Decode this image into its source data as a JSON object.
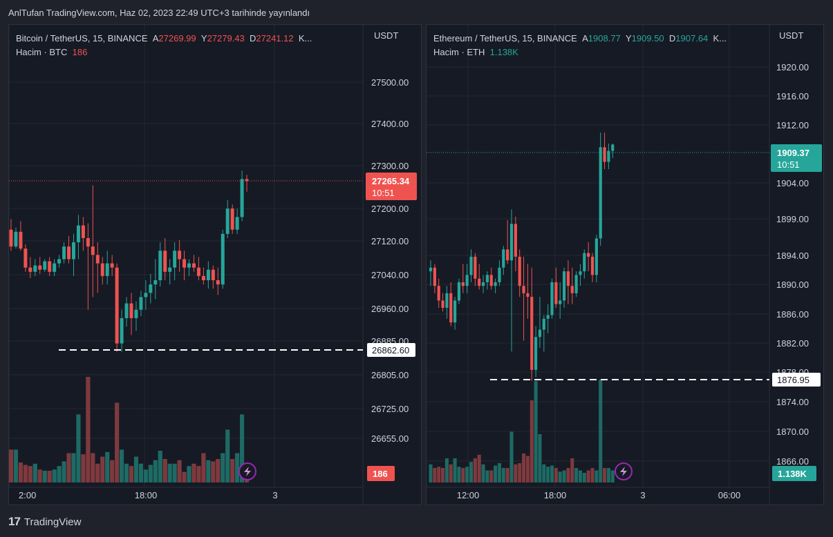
{
  "header": {
    "title": "AnlTufan TradingView.com, Haz 02, 2023 22:49 UTC+3 tarihinde yayınlandı"
  },
  "footer": {
    "logo_text": "TradingView",
    "logo_mark": "17"
  },
  "colors": {
    "up": "#26a69a",
    "down": "#ef5350",
    "up_vol": "#1e6a64",
    "down_vol": "#7f3a3e",
    "background": "#161a25",
    "grid": "#242833"
  },
  "chart_data": [
    {
      "type": "candlestick",
      "panel": "left",
      "symbol": {
        "pair": "Bitcoin / TetherUS, 15, BINANCE",
        "o_label": "A",
        "o": "27269.99",
        "h_label": "Y",
        "h": "27279.43",
        "l_label": "D",
        "l": "27241.12",
        "c_label": "K..."
      },
      "volume": {
        "label": "Hacim · BTC",
        "value": "186"
      },
      "currency": "USDT",
      "price_ticks": [
        "27500.00",
        "27400.00",
        "27300.00",
        "27200.00",
        "27120.00",
        "27040.00",
        "26960.00",
        "26885.00",
        "26805.00",
        "26725.00",
        "26655.00"
      ],
      "time_ticks": [
        "2:00",
        "18:00",
        "3"
      ],
      "last_price": {
        "value": "27265.34",
        "countdown": "10:51"
      },
      "support_line": {
        "value": "26862.60"
      },
      "volume_badge": "186",
      "ylim": [
        26560,
        27620
      ],
      "candles": [
        [
          27150,
          27175,
          27100,
          27110
        ],
        [
          27110,
          27155,
          27105,
          27145
        ],
        [
          27145,
          27170,
          27100,
          27105
        ],
        [
          27105,
          27115,
          27050,
          27060
        ],
        [
          27060,
          27085,
          27035,
          27050
        ],
        [
          27050,
          27080,
          27040,
          27065
        ],
        [
          27065,
          27085,
          27045,
          27055
        ],
        [
          27055,
          27080,
          27050,
          27075
        ],
        [
          27075,
          27085,
          27040,
          27050
        ],
        [
          27050,
          27080,
          27040,
          27070
        ],
        [
          27070,
          27090,
          27060,
          27080
        ],
        [
          27080,
          27120,
          27070,
          27110
        ],
        [
          27110,
          27135,
          27070,
          27080
        ],
        [
          27080,
          27140,
          27040,
          27120
        ],
        [
          27120,
          27185,
          27080,
          27160
        ],
        [
          27160,
          27180,
          27100,
          27130
        ],
        [
          27130,
          27165,
          26960,
          27110
        ],
        [
          27110,
          27255,
          26990,
          27090
        ],
        [
          27090,
          27120,
          27000,
          27070
        ],
        [
          27070,
          27085,
          27020,
          27040
        ],
        [
          27040,
          27100,
          27020,
          27070
        ],
        [
          27070,
          27090,
          27040,
          27060
        ],
        [
          27060,
          27070,
          26860,
          26880
        ],
        [
          26880,
          26960,
          26860,
          26940
        ],
        [
          26940,
          26990,
          26920,
          26975
        ],
        [
          26975,
          27000,
          26900,
          26940
        ],
        [
          26940,
          26980,
          26910,
          26960
        ],
        [
          26960,
          27005,
          26945,
          26990
        ],
        [
          26990,
          27030,
          26960,
          27000
        ],
        [
          27000,
          27045,
          26975,
          27020
        ],
        [
          27020,
          27080,
          26985,
          27030
        ],
        [
          27030,
          27120,
          27015,
          27100
        ],
        [
          27100,
          27130,
          27030,
          27050
        ],
        [
          27050,
          27080,
          27020,
          27060
        ],
        [
          27060,
          27120,
          27030,
          27100
        ],
        [
          27100,
          27125,
          27050,
          27080
        ],
        [
          27080,
          27100,
          27030,
          27060
        ],
        [
          27060,
          27080,
          27040,
          27070
        ],
        [
          27070,
          27090,
          27050,
          27060
        ],
        [
          27060,
          27085,
          27030,
          27040
        ],
        [
          27040,
          27060,
          27020,
          27030
        ],
        [
          27030,
          27075,
          27010,
          27055
        ],
        [
          27055,
          27065,
          27010,
          27030
        ],
        [
          27030,
          27060,
          26995,
          27020
        ],
        [
          27020,
          27150,
          27010,
          27140
        ],
        [
          27140,
          27220,
          27130,
          27200
        ],
        [
          27200,
          27210,
          27140,
          27150
        ],
        [
          27150,
          27200,
          27140,
          27180
        ],
        [
          27180,
          27290,
          27170,
          27270
        ],
        [
          27270,
          27280,
          27240,
          27265
        ]
      ],
      "volumes": [
        0.28,
        0.28,
        0.17,
        0.15,
        0.14,
        0.16,
        0.11,
        0.1,
        0.1,
        0.11,
        0.14,
        0.18,
        0.25,
        0.25,
        0.58,
        0.24,
        0.9,
        0.25,
        0.16,
        0.22,
        0.26,
        0.19,
        0.68,
        0.28,
        0.16,
        0.14,
        0.22,
        0.16,
        0.11,
        0.15,
        0.19,
        0.27,
        0.2,
        0.16,
        0.16,
        0.19,
        0.09,
        0.14,
        0.16,
        0.14,
        0.25,
        0.19,
        0.18,
        0.2,
        0.25,
        0.45,
        0.2,
        0.25,
        0.58,
        0.16
      ],
      "watermark_icon": "lightning-icon"
    },
    {
      "type": "candlestick",
      "panel": "right",
      "symbol": {
        "pair": "Ethereum / TetherUS, 15, BINANCE",
        "o_label": "A",
        "o": "1908.77",
        "h_label": "Y",
        "h": "1909.50",
        "l_label": "D",
        "l": "1907.64",
        "c_label": "K..."
      },
      "volume": {
        "label": "Hacim · ETH",
        "value": "1.138K"
      },
      "currency": "USDT",
      "price_ticks": [
        "1920.00",
        "1916.00",
        "1912.00",
        "1904.00",
        "1899.00",
        "1894.00",
        "1890.00",
        "1886.00",
        "1882.00",
        "1878.00",
        "1874.00",
        "1870.00",
        "1866.00"
      ],
      "time_ticks": [
        "12:00",
        "18:00",
        "3",
        "06:00"
      ],
      "last_price": {
        "value": "1909.37",
        "countdown": "10:51"
      },
      "support_line": {
        "value": "1876.95"
      },
      "volume_badge": "1.138K",
      "ylim": [
        1862.5,
        1925.5
      ],
      "candles": [
        [
          1892.0,
          1893.5,
          1890.0,
          1892.5
        ],
        [
          1892.5,
          1893.0,
          1889.0,
          1890.0
        ],
        [
          1890.0,
          1891.0,
          1887.0,
          1888.0
        ],
        [
          1888.0,
          1889.0,
          1886.5,
          1887.0
        ],
        [
          1887.0,
          1890.0,
          1885.5,
          1889.0
        ],
        [
          1889.0,
          1890.5,
          1884.5,
          1885.0
        ],
        [
          1885.0,
          1888.5,
          1884.0,
          1888.0
        ],
        [
          1888.0,
          1891.0,
          1887.5,
          1890.5
        ],
        [
          1890.5,
          1893.0,
          1889.0,
          1890.0
        ],
        [
          1890.0,
          1893.0,
          1889.0,
          1891.5
        ],
        [
          1891.5,
          1895.0,
          1890.5,
          1894.0
        ],
        [
          1894.0,
          1894.5,
          1890.0,
          1891.0
        ],
        [
          1891.0,
          1893.0,
          1889.5,
          1890.0
        ],
        [
          1890.0,
          1891.5,
          1889.0,
          1890.5
        ],
        [
          1890.5,
          1892.0,
          1889.5,
          1891.5
        ],
        [
          1891.5,
          1892.5,
          1889.5,
          1890.0
        ],
        [
          1890.0,
          1891.0,
          1889.0,
          1890.5
        ],
        [
          1890.5,
          1893.5,
          1890.0,
          1892.5
        ],
        [
          1892.5,
          1895.5,
          1891.5,
          1895.0
        ],
        [
          1895.0,
          1899.0,
          1893.0,
          1893.5
        ],
        [
          1893.5,
          1900.5,
          1881.0,
          1898.5
        ],
        [
          1898.5,
          1899.5,
          1892.0,
          1894.0
        ],
        [
          1894.0,
          1895.0,
          1888.5,
          1890.0
        ],
        [
          1890.0,
          1894.0,
          1882.5,
          1889.0
        ],
        [
          1889.0,
          1893.0,
          1885.5,
          1888.5
        ],
        [
          1888.5,
          1892.5,
          1877.0,
          1878.5
        ],
        [
          1878.5,
          1884.5,
          1877.5,
          1883.0
        ],
        [
          1883.0,
          1888.5,
          1881.5,
          1884.0
        ],
        [
          1884.0,
          1886.0,
          1881.0,
          1885.5
        ],
        [
          1885.5,
          1887.5,
          1883.5,
          1886.0
        ],
        [
          1886.0,
          1891.0,
          1885.5,
          1890.5
        ],
        [
          1890.5,
          1892.5,
          1887.0,
          1887.5
        ],
        [
          1887.5,
          1890.5,
          1885.5,
          1888.0
        ],
        [
          1888.0,
          1892.5,
          1887.0,
          1892.0
        ],
        [
          1892.0,
          1893.5,
          1887.5,
          1890.0
        ],
        [
          1890.0,
          1892.5,
          1887.5,
          1889.0
        ],
        [
          1889.0,
          1892.0,
          1888.5,
          1891.5
        ],
        [
          1891.5,
          1893.0,
          1890.0,
          1892.0
        ],
        [
          1892.0,
          1895.0,
          1891.0,
          1894.5
        ],
        [
          1894.5,
          1896.0,
          1892.0,
          1894.0
        ],
        [
          1894.0,
          1894.5,
          1890.5,
          1891.5
        ],
        [
          1891.5,
          1897.0,
          1890.5,
          1896.5
        ],
        [
          1896.5,
          1911.0,
          1895.5,
          1909.0
        ],
        [
          1909.0,
          1911.0,
          1906.0,
          1907.0
        ],
        [
          1907.0,
          1909.5,
          1906.0,
          1908.5
        ],
        [
          1908.5,
          1909.5,
          1907.5,
          1909.37
        ]
      ],
      "volumes": [
        0.15,
        0.12,
        0.13,
        0.12,
        0.2,
        0.15,
        0.2,
        0.13,
        0.12,
        0.13,
        0.17,
        0.2,
        0.23,
        0.15,
        0.1,
        0.1,
        0.14,
        0.16,
        0.12,
        0.12,
        0.42,
        0.15,
        0.16,
        0.24,
        0.22,
        0.68,
        0.84,
        0.4,
        0.15,
        0.13,
        0.14,
        0.12,
        0.09,
        0.1,
        0.12,
        0.2,
        0.12,
        0.1,
        0.08,
        0.1,
        0.12,
        0.1,
        0.85,
        0.12,
        0.12,
        0.1
      ],
      "watermark_icon": "lightning-icon"
    }
  ]
}
